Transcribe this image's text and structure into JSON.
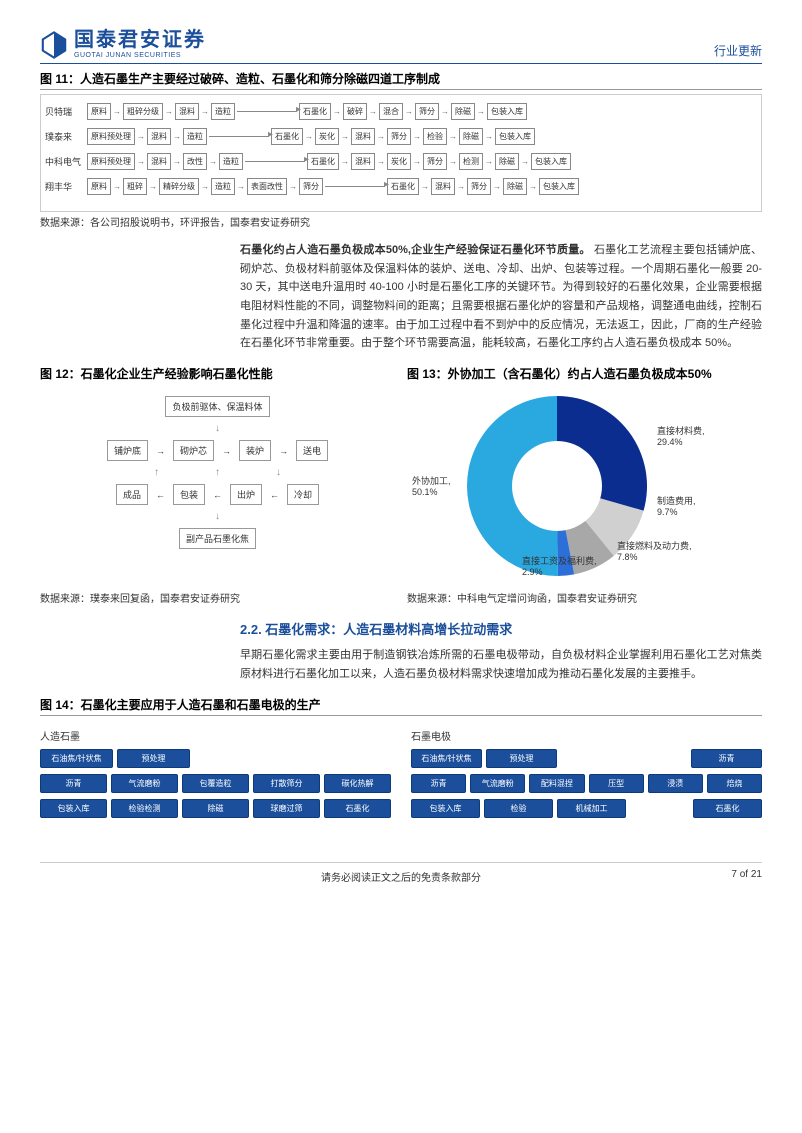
{
  "header": {
    "logo_cn": "国泰君安证券",
    "logo_en": "GUOTAI JUNAN SECURITIES",
    "category": "行业更新"
  },
  "fig11": {
    "title": "图 11：人造石墨生产主要经过破碎、造粒、石墨化和筛分除磁四道工序制成",
    "rows": [
      {
        "label": "贝特瑞",
        "steps": [
          "原料",
          "粗碎分级",
          "混料",
          "造粒",
          "石墨化",
          "破碎",
          "混合",
          "筛分",
          "除磁",
          "包装入库"
        ]
      },
      {
        "label": "璞泰来",
        "steps": [
          "原料预处理",
          "混料",
          "造粒",
          "石墨化",
          "炭化",
          "混料",
          "筛分",
          "检验",
          "除磁",
          "包装入库"
        ]
      },
      {
        "label": "中科电气",
        "steps": [
          "原料预处理",
          "混料",
          "改性",
          "造粒",
          "石墨化",
          "混料",
          "炭化",
          "筛分",
          "检测",
          "除磁",
          "包装入库"
        ]
      },
      {
        "label": "翔丰华",
        "steps": [
          "原料",
          "粗碎",
          "精碎分级",
          "造粒",
          "表面改性",
          "筛分",
          "石墨化",
          "混料",
          "筛分",
          "除磁",
          "包装入库"
        ]
      }
    ],
    "source": "数据来源：各公司招股说明书，环评报告，国泰君安证券研究"
  },
  "para1": {
    "lead": "石墨化约占人造石墨负极成本50%,企业生产经验保证石墨化环节质量。",
    "body": "石墨化工艺流程主要包括铺炉底、砌炉芯、负极材料前驱体及保温料体的装炉、送电、冷却、出炉、包装等过程。一个周期石墨化一般要 20-30 天，其中送电升温用时 40-100 小时是石墨化工序的关键环节。为得到较好的石墨化效果，企业需要根据电阻材料性能的不同，调整物料间的距离；且需要根据石墨化炉的容量和产品规格，调整通电曲线，控制石墨化过程中升温和降温的速率。由于加工过程中看不到炉中的反应情况，无法返工，因此，厂商的生产经验在石墨化环节非常重要。由于整个环节需要高温，能耗较高，石墨化工序约占人造石墨负极成本 50%。"
  },
  "fig12": {
    "title": "图 12：石墨化企业生产经验影响石墨化性能",
    "top": "负极前驱体、保温料体",
    "r1": [
      "铺炉底",
      "砌炉芯",
      "装炉",
      "送电"
    ],
    "r2": [
      "成品",
      "包装",
      "出炉",
      "冷却"
    ],
    "bottom": "副产品石墨化焦",
    "source": "数据来源：璞泰来回复函，国泰君安证券研究"
  },
  "fig13": {
    "title": "图 13：外协加工（含石墨化）约占人造石墨负极成本50%",
    "type": "donut",
    "slices": [
      {
        "label": "直接材料费,",
        "value": 29.4,
        "pct": "29.4%",
        "color": "#0a2d8f"
      },
      {
        "label": "制造费用,",
        "value": 9.7,
        "pct": "9.7%",
        "color": "#d0d0d0"
      },
      {
        "label": "直接燃料及动力费,",
        "value": 7.8,
        "pct": "7.8%",
        "color": "#a8a8a8"
      },
      {
        "label": "直接工资及福利费,",
        "value": 2.9,
        "pct": "2.9%",
        "color": "#2d6fd8"
      },
      {
        "label": "外协加工,",
        "value": 50.1,
        "pct": "50.1%",
        "color": "#2aa8e0"
      }
    ],
    "inner_ratio": 0.5,
    "source": "数据来源：中科电气定增问询函，国泰君安证券研究"
  },
  "section22": "2.2.  石墨化需求：人造石墨材料高增长拉动需求",
  "para2": "早期石墨化需求主要由用于制造钢铁冶炼所需的石墨电极带动，自负极材料企业掌握利用石墨化工艺对焦类原材料进行石墨化加工以来，人造石墨负极材料需求快速增加成为推动石墨化发展的主要推手。",
  "fig14": {
    "title": "图 14：石墨化主要应用于人造石墨和石墨电极的生产",
    "left_label": "人造石墨",
    "right_label": "石墨电极",
    "left": {
      "r1": [
        "石油焦/针状焦",
        "预处理",
        "",
        "",
        ""
      ],
      "r2": [
        "沥青",
        "气流磨粉",
        "包覆造粒",
        "打散筛分",
        "碳化热解"
      ],
      "r3": [
        "包装入库",
        "检验检测",
        "除磁",
        "球磨过筛",
        "石墨化"
      ]
    },
    "right": {
      "r1": [
        "石油焦/针状焦",
        "预处理",
        "",
        "",
        "沥青"
      ],
      "r2": [
        "沥青",
        "气流磨粉",
        "配料混捏",
        "压型",
        "浸渍",
        "焙烧"
      ],
      "r3": [
        "包装入库",
        "检验",
        "机械加工",
        "",
        "石墨化"
      ]
    },
    "box_color": "#1b4f9b"
  },
  "footer": {
    "disclaimer": "请务必阅读正文之后的免责条款部分",
    "page": "7 of 21"
  }
}
